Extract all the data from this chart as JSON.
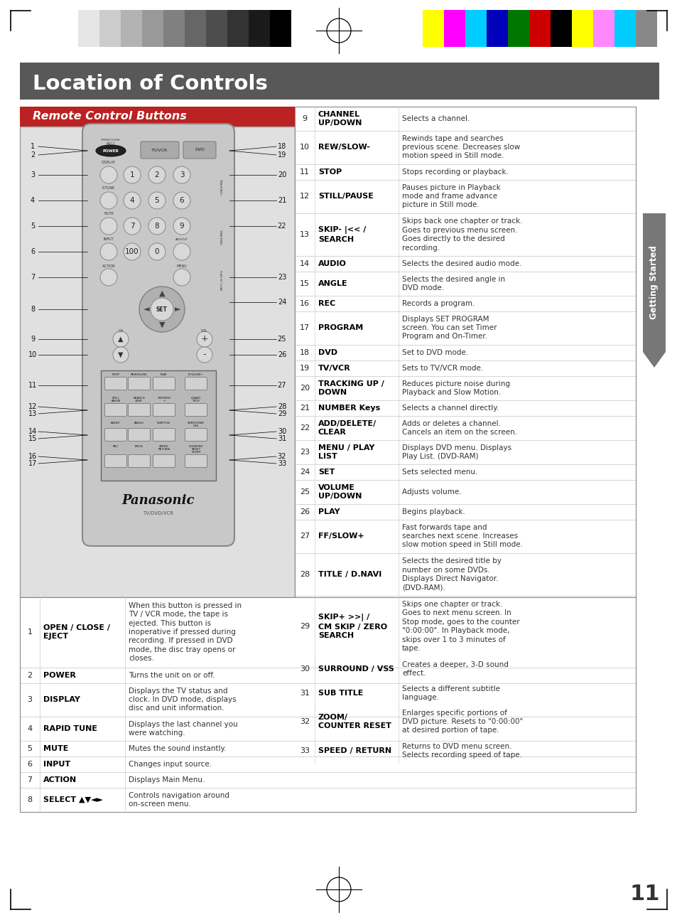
{
  "title": "Location of Controls",
  "subtitle": "Remote Control Buttons",
  "page_number": "11",
  "table_right": {
    "rows": [
      [
        "9",
        "CHANNEL\nUP/DOWN",
        "Selects a channel."
      ],
      [
        "10",
        "REW/SLOW-",
        "Rewinds tape and searches\nprevious scene. Decreases slow\nmotion speed in Still mode."
      ],
      [
        "11",
        "STOP",
        "Stops recording or playback."
      ],
      [
        "12",
        "STILL/PAUSE",
        "Pauses picture in Playback\nmode and frame advance\npicture in Still mode."
      ],
      [
        "13",
        "SKIP- |<< /\nSEARCH",
        "Skips back one chapter or track.\nGoes to previous menu screen.\nGoes directly to the desired\nrecording."
      ],
      [
        "14",
        "AUDIO",
        "Selects the desired audio mode."
      ],
      [
        "15",
        "ANGLE",
        "Selects the desired angle in\nDVD mode."
      ],
      [
        "16",
        "REC",
        "Records a program."
      ],
      [
        "17",
        "PROGRAM",
        "Displays SET PROGRAM\nscreen. You can set Timer\nProgram and On-Timer."
      ],
      [
        "18",
        "DVD",
        "Set to DVD mode."
      ],
      [
        "19",
        "TV/VCR",
        "Sets to TV/VCR mode."
      ],
      [
        "20",
        "TRACKING UP /\nDOWN",
        "Reduces picture noise during\nPlayback and Slow Motion."
      ],
      [
        "21",
        "NUMBER Keys",
        "Selects a channel directly."
      ],
      [
        "22",
        "ADD/DELETE/\nCLEAR",
        "Adds or deletes a channel.\nCancels an item on the screen."
      ],
      [
        "23",
        "MENU / PLAY\nLIST",
        "Displays DVD menu. Displays\nPlay List. (DVD-RAM)"
      ],
      [
        "24",
        "SET",
        "Sets selected menu."
      ],
      [
        "25",
        "VOLUME\nUP/DOWN",
        "Adjusts volume."
      ],
      [
        "26",
        "PLAY",
        "Begins playback."
      ],
      [
        "27",
        "FF/SLOW+",
        "Fast forwards tape and\nsearches next scene. Increases\nslow motion speed in Still mode."
      ],
      [
        "28",
        "TITLE / D.NAVI",
        "Selects the desired title by\nnumber on some DVDs.\nDisplays Direct Navigator.\n(DVD-RAM)."
      ],
      [
        "29",
        "SKIP+ >>| /\nCM SKIP / ZERO\nSEARCH",
        "Skips one chapter or track.\nGoes to next menu screen. In\nStop mode, goes to the counter\n\"0:00:00\". In Playback mode,\nskips over 1 to 3 minutes of\ntape."
      ],
      [
        "30",
        "SURROUND / VSS",
        "Creates a deeper, 3-D sound\neffect."
      ],
      [
        "31",
        "SUB TITLE",
        "Selects a different subtitle\nlanguage."
      ],
      [
        "32",
        "ZOOM/\nCOUNTER RESET",
        "Enlarges specific portions of\nDVD picture. Resets to \"0:00:00\"\nat desired portion of tape."
      ],
      [
        "33",
        "SPEED / RETURN",
        "Returns to DVD menu screen.\nSelects recording speed of tape."
      ]
    ]
  },
  "table_bottom": {
    "rows": [
      [
        "1",
        "OPEN / CLOSE /\nEJECT",
        "When this button is pressed in\nTV / VCR mode, the tape is\nejected. This button is\ninoperative if pressed during\nrecording. If pressed in DVD\nmode, the disc tray opens or\ncloses."
      ],
      [
        "2",
        "POWER",
        "Turns the unit on or off."
      ],
      [
        "3",
        "DISPLAY",
        "Displays the TV status and\nclock. In DVD mode, displays\ndisc and unit information."
      ],
      [
        "4",
        "RAPID TUNE",
        "Displays the last channel you\nwere watching."
      ],
      [
        "5",
        "MUTE",
        "Mutes the sound instantly."
      ],
      [
        "6",
        "INPUT",
        "Changes input source."
      ],
      [
        "7",
        "ACTION",
        "Displays Main Menu."
      ],
      [
        "8",
        "SELECT ▲▼◄►",
        "Controls navigation around\non-screen menu."
      ]
    ]
  },
  "grayscale_colors": [
    "#ffffff",
    "#e6e6e6",
    "#cccccc",
    "#b3b3b3",
    "#999999",
    "#808080",
    "#666666",
    "#4d4d4d",
    "#333333",
    "#1a1a1a",
    "#000000"
  ],
  "color_bars": [
    "#ffff00",
    "#ff00ff",
    "#00ccff",
    "#0000bb",
    "#007700",
    "#cc0000",
    "#000000",
    "#ffff00",
    "#ff88ff",
    "#00ccff",
    "#888888"
  ]
}
